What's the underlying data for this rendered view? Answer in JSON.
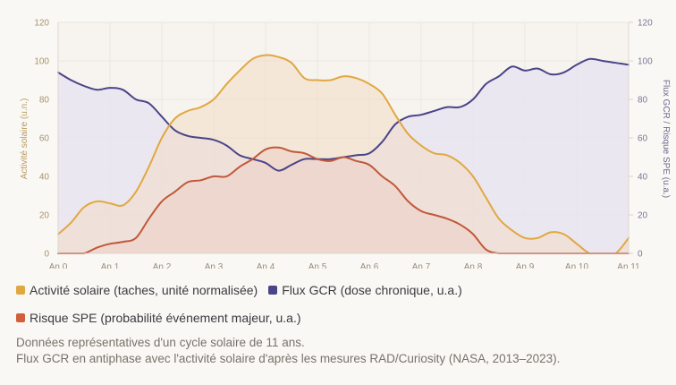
{
  "chart_data": {
    "type": "line",
    "title": "",
    "xlabel": "",
    "ylabel": "Activité solaire (u.n.)",
    "y2label": "Flux GCR / Risque SPE (u.a.)",
    "ylim": [
      0,
      120
    ],
    "y2lim": [
      0,
      120
    ],
    "xlim": [
      0,
      11
    ],
    "grid": true,
    "area_fill": true,
    "x_ticks": [
      0,
      1,
      2,
      3,
      4,
      5,
      6,
      7,
      8,
      9,
      10,
      11
    ],
    "x_tick_labels": [
      "An 0",
      "An 1",
      "An 2",
      "An 3",
      "An 4",
      "An 5",
      "An 6",
      "An 7",
      "An 8",
      "An 9",
      "An 10",
      "An 11"
    ],
    "y_ticks": [
      0,
      20,
      40,
      60,
      80,
      100,
      120
    ],
    "y_tick_labels": [
      "0",
      "20",
      "40",
      "60",
      "80",
      "100",
      "120"
    ],
    "y2_ticks": [
      0,
      20,
      40,
      60,
      80,
      100,
      120
    ],
    "y2_tick_labels": [
      "0",
      "20",
      "40",
      "60",
      "80",
      "100",
      "120"
    ],
    "x": [
      0,
      0.25,
      0.5,
      0.75,
      1,
      1.25,
      1.5,
      1.75,
      2,
      2.25,
      2.5,
      2.75,
      3,
      3.25,
      3.5,
      3.75,
      4,
      4.25,
      4.5,
      4.75,
      5,
      5.25,
      5.5,
      5.75,
      6,
      6.25,
      6.5,
      6.75,
      7,
      7.25,
      7.5,
      7.75,
      8,
      8.25,
      8.5,
      8.75,
      9,
      9.25,
      9.5,
      9.75,
      10,
      10.25,
      10.5,
      10.75,
      11
    ],
    "series": [
      {
        "name": "Activité solaire (taches, unité normalisée)",
        "key": "solar",
        "axis": "left",
        "color": "#e0a840",
        "fill": "#f3dcc4",
        "values": [
          10,
          16,
          24,
          27,
          26,
          25,
          32,
          45,
          60,
          70,
          74,
          76,
          80,
          88,
          95,
          101,
          103,
          102,
          99,
          91,
          90,
          90,
          92,
          91,
          88,
          83,
          72,
          62,
          56,
          52,
          51,
          47,
          40,
          29,
          18,
          12,
          8,
          8,
          11,
          10,
          5,
          0,
          0,
          0,
          8
        ]
      },
      {
        "name": "Flux GCR (dose chronique, u.a.)",
        "key": "gcr",
        "axis": "right",
        "color": "#4a4488",
        "fill": "#e6e3f1",
        "values": [
          94,
          90,
          87,
          85,
          86,
          85,
          80,
          78,
          71,
          64,
          61,
          60,
          59,
          56,
          51,
          49,
          47,
          43,
          46,
          49,
          49,
          49,
          50,
          51,
          52,
          58,
          67,
          71,
          72,
          74,
          76,
          76,
          80,
          88,
          92,
          97,
          95,
          96,
          93,
          94,
          98,
          101,
          100,
          99,
          98
        ]
      },
      {
        "name": "Risque SPE (probabilité événement majeur, u.a.)",
        "key": "spe",
        "axis": "right",
        "color": "#c0583a",
        "fill": "#ecd0c4",
        "values": [
          0,
          0,
          0,
          3,
          5,
          6,
          8,
          18,
          27,
          32,
          37,
          38,
          40,
          40,
          45,
          49,
          54,
          55,
          53,
          52,
          49,
          48,
          50,
          48,
          46,
          40,
          35,
          27,
          22,
          20,
          18,
          15,
          10,
          2,
          0,
          0,
          0,
          0,
          0,
          0,
          0,
          0,
          0,
          0,
          0
        ]
      }
    ],
    "legend_position": "bottom-left"
  },
  "legend": {
    "items": [
      {
        "label": "Activité solaire (taches, unité normalisée)",
        "color": "#e0a840"
      },
      {
        "label": "Flux GCR (dose chronique, u.a.)",
        "color": "#4a4488"
      },
      {
        "label": "Risque SPE (probabilité événement majeur, u.a.)",
        "color": "#d0603c"
      }
    ]
  },
  "notes": {
    "line1": "Données représentatives d'un cycle solaire de 11 ans.",
    "line2": "Flux GCR en antiphase avec l'activité solaire d'après les mesures RAD/Curiosity (NASA, 2013–2023)."
  }
}
